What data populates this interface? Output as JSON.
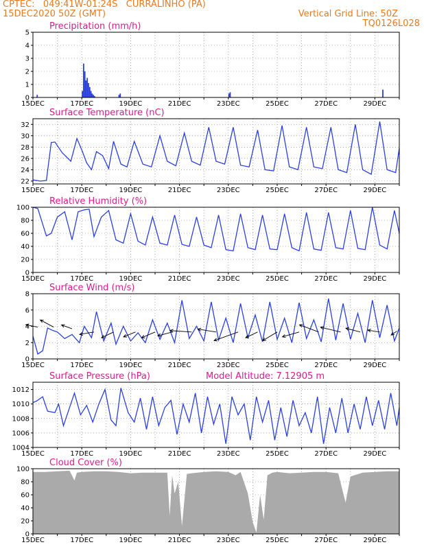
{
  "header": {
    "line1_left": "CPTEC:   049:41W-01:24S   CURRALINHO (PA)",
    "line2_left": "15DEC2020 50Z (GMT)",
    "line1_right": "Vertical Grid Line: 50Z",
    "line2_right": "TQ0126L028"
  },
  "colors": {
    "header": "#e87a1e",
    "title": "#e0198c",
    "series": "#2a3fe0",
    "cloud": "#aaaaaa"
  },
  "chart_data": [
    {
      "id": "precip",
      "type": "bar",
      "title": "Precipitation (mm/h)",
      "ylim": [
        0,
        5
      ],
      "yticks": [
        0,
        1,
        2,
        3,
        4,
        5
      ],
      "xlim": [
        0,
        15
      ],
      "xticks": [
        "15DEC",
        "17DEC",
        "19DEC",
        "21DEC",
        "23DEC",
        "25DEC",
        "27DEC",
        "29DEC"
      ],
      "x": [
        0.15,
        2.0,
        2.05,
        2.1,
        2.15,
        2.2,
        2.25,
        2.3,
        2.35,
        2.4,
        2.45,
        2.5,
        3.5,
        3.55,
        8.0,
        8.05,
        14.3
      ],
      "values": [
        0.2,
        0.5,
        2.6,
        2.0,
        1.3,
        1.5,
        1.1,
        0.8,
        0.5,
        0.3,
        0.2,
        0.1,
        0.2,
        0.3,
        0.3,
        0.4,
        0.6
      ]
    },
    {
      "id": "temp",
      "type": "line",
      "title": "Surface Temperature (nC)",
      "ylim": [
        21.5,
        33
      ],
      "yticks": [
        22,
        24,
        26,
        28,
        30,
        32
      ],
      "xlim": [
        0,
        15
      ],
      "xticks": [
        "15DEC",
        "17DEC",
        "19DEC",
        "21DEC",
        "23DEC",
        "25DEC",
        "27DEC",
        "29DEC"
      ],
      "x": [
        0,
        0.3,
        0.55,
        0.75,
        0.9,
        1.2,
        1.55,
        1.8,
        2.0,
        2.2,
        2.4,
        2.6,
        2.85,
        3.1,
        3.3,
        3.6,
        3.85,
        4.15,
        4.5,
        4.85,
        5.2,
        5.5,
        5.85,
        6.2,
        6.5,
        6.85,
        7.2,
        7.5,
        7.85,
        8.2,
        8.5,
        8.85,
        9.2,
        9.5,
        9.85,
        10.2,
        10.5,
        10.85,
        11.2,
        11.5,
        11.85,
        12.2,
        12.5,
        12.85,
        13.2,
        13.5,
        13.85,
        14.2,
        14.5,
        14.85,
        15.0
      ],
      "y": [
        22.2,
        22.0,
        22.1,
        28.8,
        28.9,
        27.0,
        25.5,
        29.5,
        27.5,
        25.2,
        24.0,
        27.2,
        26.5,
        24.2,
        29.0,
        25.0,
        24.5,
        29.0,
        25.0,
        24.5,
        30.0,
        25.5,
        24.7,
        30.5,
        25.5,
        24.8,
        31.5,
        25.5,
        25.0,
        31.5,
        24.8,
        24.5,
        31.0,
        24.0,
        23.8,
        31.8,
        24.5,
        24.0,
        31.5,
        24.5,
        24.2,
        31.5,
        24.0,
        23.5,
        32.0,
        24.0,
        23.2,
        32.5,
        24.0,
        23.5,
        27.8
      ]
    },
    {
      "id": "rh",
      "type": "line",
      "title": "Relative Humidity (%)",
      "ylim": [
        0,
        100
      ],
      "yticks": [
        0,
        20,
        40,
        60,
        80,
        100
      ],
      "xlim": [
        0,
        15
      ],
      "xticks": [
        "15DEC",
        "17DEC",
        "19DEC",
        "21DEC",
        "23DEC",
        "25DEC",
        "27DEC",
        "29DEC"
      ],
      "x": [
        0,
        0.2,
        0.55,
        0.75,
        1.0,
        1.3,
        1.6,
        1.85,
        2.1,
        2.3,
        2.5,
        2.8,
        3.1,
        3.4,
        3.7,
        4.0,
        4.3,
        4.6,
        4.9,
        5.2,
        5.5,
        5.8,
        6.1,
        6.4,
        6.7,
        7.0,
        7.3,
        7.6,
        7.9,
        8.2,
        8.5,
        8.8,
        9.1,
        9.4,
        9.7,
        10.0,
        10.3,
        10.6,
        10.9,
        11.2,
        11.5,
        11.8,
        12.1,
        12.4,
        12.7,
        13.0,
        13.3,
        13.6,
        13.9,
        14.2,
        14.5,
        14.8,
        15.0
      ],
      "y": [
        100,
        98,
        56,
        60,
        85,
        93,
        50,
        93,
        96,
        97,
        55,
        85,
        95,
        50,
        45,
        90,
        48,
        42,
        85,
        45,
        42,
        88,
        43,
        40,
        85,
        42,
        38,
        88,
        35,
        33,
        90,
        38,
        35,
        88,
        36,
        35,
        90,
        38,
        33,
        92,
        36,
        34,
        92,
        38,
        36,
        95,
        37,
        35,
        100,
        42,
        36,
        95,
        60
      ]
    },
    {
      "id": "wind",
      "type": "line",
      "title": "Surface Wind (m/s)",
      "ylim": [
        0,
        8
      ],
      "yticks": [
        0,
        2,
        4,
        6,
        8
      ],
      "xlim": [
        0,
        15
      ],
      "xticks": [
        "15DEC",
        "17DEC",
        "19DEC",
        "21DEC",
        "23DEC",
        "25DEC",
        "27DEC",
        "29DEC"
      ],
      "x": [
        0,
        0.2,
        0.4,
        0.6,
        0.8,
        1.0,
        1.3,
        1.6,
        1.9,
        2.1,
        2.4,
        2.6,
        2.9,
        3.2,
        3.4,
        3.7,
        4.0,
        4.3,
        4.6,
        4.9,
        5.2,
        5.5,
        5.8,
        6.1,
        6.4,
        6.7,
        7.0,
        7.3,
        7.6,
        7.9,
        8.2,
        8.5,
        8.8,
        9.1,
        9.4,
        9.7,
        10.0,
        10.3,
        10.6,
        10.9,
        11.2,
        11.5,
        11.8,
        12.1,
        12.4,
        12.7,
        13.0,
        13.3,
        13.6,
        13.9,
        14.2,
        14.5,
        14.8,
        15.0
      ],
      "y": [
        2.8,
        0.6,
        1.0,
        3.8,
        3.5,
        3.3,
        2.5,
        3.0,
        2.0,
        4.0,
        2.6,
        5.8,
        2.2,
        4.4,
        1.8,
        4.0,
        2.2,
        3.2,
        2.0,
        4.8,
        2.4,
        4.4,
        2.0,
        7.2,
        2.5,
        4.0,
        2.2,
        7.0,
        2.3,
        5.0,
        2.0,
        6.8,
        2.6,
        5.4,
        2.1,
        7.0,
        2.4,
        5.0,
        2.0,
        6.9,
        2.5,
        4.8,
        2.1,
        7.4,
        2.3,
        6.8,
        2.4,
        5.6,
        2.0,
        7.2,
        2.6,
        6.6,
        2.2,
        3.8
      ],
      "arrows": [
        {
          "x": 0.2,
          "y": 3.9,
          "u": -2.5,
          "v": 0.5
        },
        {
          "x": 0.85,
          "y": 3.9,
          "u": -2.8,
          "v": 1.5
        },
        {
          "x": 1.6,
          "y": 3.7,
          "u": -2.2,
          "v": 0.8
        },
        {
          "x": 2.5,
          "y": 3.3,
          "u": -3.0,
          "v": -0.5
        },
        {
          "x": 3.3,
          "y": 3.3,
          "u": -2.5,
          "v": -1.2
        },
        {
          "x": 4.2,
          "y": 3.3,
          "u": -2.5,
          "v": -1.0
        },
        {
          "x": 5.0,
          "y": 3.3,
          "u": -2.8,
          "v": -1.2
        },
        {
          "x": 5.7,
          "y": 3.3,
          "u": -3.0,
          "v": -0.8
        },
        {
          "x": 6.5,
          "y": 3.3,
          "u": -4.5,
          "v": 0.3
        },
        {
          "x": 7.5,
          "y": 3.3,
          "u": -3.8,
          "v": 0.6
        },
        {
          "x": 8.4,
          "y": 3.3,
          "u": -5.0,
          "v": -1.8
        },
        {
          "x": 9.2,
          "y": 3.3,
          "u": -2.5,
          "v": -1.2
        },
        {
          "x": 10.0,
          "y": 3.3,
          "u": -3.0,
          "v": -1.8
        },
        {
          "x": 10.9,
          "y": 3.3,
          "u": -3.5,
          "v": -1.0
        },
        {
          "x": 11.7,
          "y": 3.3,
          "u": -4.0,
          "v": 1.5
        },
        {
          "x": 12.6,
          "y": 3.3,
          "u": -4.2,
          "v": 1.0
        },
        {
          "x": 13.4,
          "y": 3.3,
          "u": -3.0,
          "v": 0.8
        },
        {
          "x": 14.2,
          "y": 3.3,
          "u": -2.5,
          "v": 0.4
        },
        {
          "x": 14.9,
          "y": 3.4,
          "u": -1.2,
          "v": -0.8
        }
      ]
    },
    {
      "id": "pres",
      "type": "line",
      "title": "Surface Pressure (hPa)",
      "annotation": "Model Altitude: 7.12905 m",
      "ylim": [
        1004,
        1013
      ],
      "yticks": [
        1004,
        1006,
        1008,
        1010,
        1012
      ],
      "xlim": [
        0,
        15
      ],
      "xticks": [
        "15DEC",
        "17DEC",
        "19DEC",
        "21DEC",
        "23DEC",
        "25DEC",
        "27DEC",
        "29DEC"
      ],
      "x": [
        0,
        0.15,
        0.4,
        0.6,
        0.9,
        1.05,
        1.25,
        1.45,
        1.7,
        1.95,
        2.2,
        2.45,
        2.7,
        2.95,
        3.2,
        3.4,
        3.6,
        3.9,
        4.15,
        4.4,
        4.65,
        4.9,
        5.15,
        5.4,
        5.65,
        5.9,
        6.15,
        6.4,
        6.65,
        6.9,
        7.15,
        7.4,
        7.65,
        7.9,
        8.15,
        8.4,
        8.65,
        8.9,
        9.15,
        9.4,
        9.65,
        9.9,
        10.15,
        10.4,
        10.65,
        10.9,
        11.15,
        11.4,
        11.65,
        11.9,
        12.15,
        12.4,
        12.65,
        12.9,
        13.15,
        13.4,
        13.65,
        13.9,
        14.15,
        14.4,
        14.65,
        14.9,
        15.0
      ],
      "y": [
        1010.2,
        1010.4,
        1011.0,
        1009.0,
        1008.8,
        1010.0,
        1007.0,
        1009.0,
        1011.5,
        1008.5,
        1009.8,
        1007.5,
        1010.0,
        1012.0,
        1007.8,
        1007.0,
        1012.2,
        1008.8,
        1007.5,
        1010.8,
        1006.5,
        1011.0,
        1007.0,
        1009.5,
        1010.5,
        1005.8,
        1010.0,
        1007.5,
        1011.5,
        1006.0,
        1011.0,
        1007.2,
        1010.0,
        1004.5,
        1011.0,
        1008.5,
        1010.0,
        1005.0,
        1011.0,
        1007.5,
        1010.5,
        1005.0,
        1009.5,
        1005.5,
        1010.5,
        1007.0,
        1008.8,
        1006.0,
        1011.0,
        1004.5,
        1009.5,
        1006.0,
        1010.8,
        1006.0,
        1010.0,
        1006.5,
        1011.0,
        1007.0,
        1010.5,
        1006.5,
        1011.5,
        1007.0,
        1009.5
      ]
    },
    {
      "id": "cloud",
      "type": "area",
      "title": "Cloud Cover (%)",
      "ylim": [
        0,
        100
      ],
      "yticks": [
        0,
        20,
        40,
        60,
        80,
        100
      ],
      "xlim": [
        0,
        15
      ],
      "xticks": [
        "15DEC",
        "17DEC",
        "19DEC",
        "21DEC",
        "23DEC",
        "25DEC",
        "27DEC",
        "29DEC"
      ],
      "x": [
        0,
        0.5,
        1.0,
        1.5,
        1.7,
        1.8,
        2.0,
        2.5,
        3.0,
        3.5,
        4.0,
        4.5,
        5.0,
        5.5,
        5.6,
        5.7,
        5.8,
        5.95,
        6.1,
        6.3,
        6.5,
        7.0,
        7.5,
        8.0,
        8.3,
        8.5,
        8.8,
        9.0,
        9.15,
        9.3,
        9.45,
        9.6,
        9.8,
        10.0,
        10.5,
        11.0,
        11.5,
        12.0,
        12.5,
        12.8,
        13.0,
        13.5,
        14.0,
        14.5,
        15.0
      ],
      "y": [
        95,
        95,
        96,
        97,
        82,
        94,
        95,
        96,
        96,
        95,
        93,
        94,
        94,
        94,
        28,
        90,
        62,
        80,
        12,
        92,
        93,
        95,
        96,
        95,
        90,
        95,
        62,
        18,
        2,
        60,
        22,
        90,
        94,
        95,
        93,
        94,
        95,
        95,
        93,
        48,
        88,
        94,
        95,
        96,
        96
      ]
    }
  ]
}
